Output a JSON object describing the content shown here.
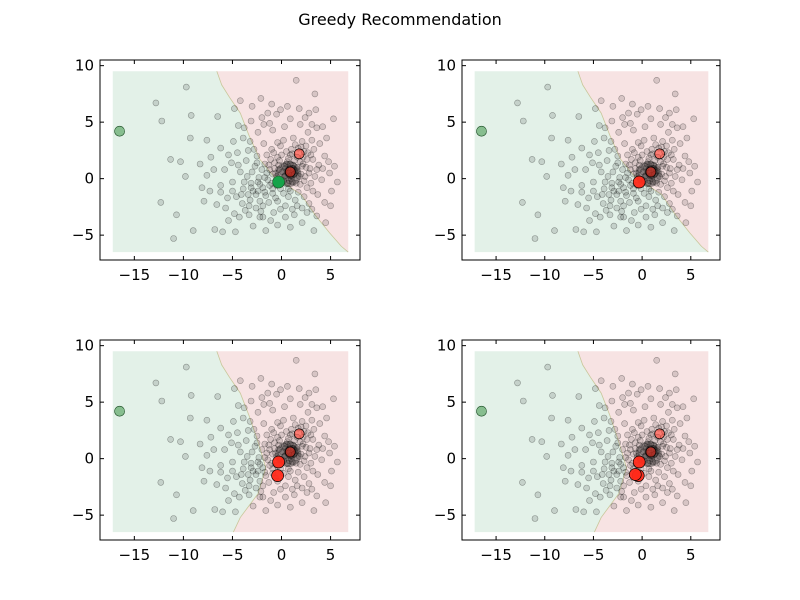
{
  "suptitle": "Greedy Recommendation",
  "colors": {
    "green_region": "#e3f1e8",
    "red_region": "#f7e3e3",
    "boundary": "#c9c79a",
    "cloud_point": "#000000",
    "green_marker": "#16a34a",
    "green_outlier": "#5fa86a",
    "red_marker": "#ff2a1a"
  },
  "chart_data": [
    {
      "type": "scatter",
      "title": "",
      "xlabel": "",
      "ylabel": "",
      "xlim": [
        -18.5,
        8
      ],
      "ylim": [
        -7.2,
        10.5
      ],
      "xticks": [
        -15,
        -10,
        -5,
        0,
        5
      ],
      "xtick_labels": [
        "−15",
        "−10",
        "−5",
        "0",
        "5"
      ],
      "yticks": [
        -5,
        0,
        5,
        10
      ],
      "ytick_labels": [
        "−5",
        "0",
        "5",
        "10"
      ],
      "region_extent": {
        "x": [
          -17.2,
          6.8
        ],
        "y": [
          -6.5,
          9.5
        ]
      },
      "boundary": [
        [
          -6.6,
          9.5
        ],
        [
          -6.1,
          8.3
        ],
        [
          -5.3,
          7.2
        ],
        [
          -4.2,
          5.8
        ],
        [
          -3.3,
          3.8
        ],
        [
          -2.2,
          1.7
        ],
        [
          -0.9,
          0.3
        ],
        [
          0.4,
          -0.5
        ],
        [
          2.0,
          -1.4
        ],
        [
          3.5,
          -3.3
        ],
        [
          4.9,
          -4.8
        ],
        [
          6.1,
          -6.0
        ],
        [
          6.8,
          -6.5
        ]
      ],
      "green_points": [
        [
          -16.5,
          4.2
        ],
        [
          -0.3,
          -0.3
        ]
      ],
      "red_points": [
        [
          0.9,
          0.6
        ],
        [
          1.8,
          2.2
        ]
      ]
    },
    {
      "type": "scatter",
      "title": "",
      "xlabel": "",
      "ylabel": "",
      "xlim": [
        -18.5,
        8
      ],
      "ylim": [
        -7.2,
        10.5
      ],
      "xticks": [
        -15,
        -10,
        -5,
        0,
        5
      ],
      "xtick_labels": [
        "−15",
        "−10",
        "−5",
        "0",
        "5"
      ],
      "yticks": [
        -5,
        0,
        5,
        10
      ],
      "ytick_labels": [
        "−5",
        "0",
        "5",
        "10"
      ],
      "region_extent": {
        "x": [
          -17.2,
          6.8
        ],
        "y": [
          -6.5,
          9.5
        ]
      },
      "boundary": [
        [
          -6.6,
          9.5
        ],
        [
          -6.1,
          8.3
        ],
        [
          -5.3,
          7.2
        ],
        [
          -4.2,
          5.8
        ],
        [
          -3.3,
          3.8
        ],
        [
          -2.2,
          1.7
        ],
        [
          -0.9,
          0.3
        ],
        [
          0.4,
          -0.5
        ],
        [
          2.0,
          -1.4
        ],
        [
          3.5,
          -3.3
        ],
        [
          4.9,
          -4.8
        ],
        [
          6.1,
          -6.0
        ],
        [
          6.8,
          -6.5
        ]
      ],
      "green_points": [
        [
          -16.5,
          4.2
        ]
      ],
      "red_points": [
        [
          0.9,
          0.6
        ],
        [
          1.8,
          2.2
        ],
        [
          -0.3,
          -0.3
        ]
      ]
    },
    {
      "type": "scatter",
      "title": "",
      "xlabel": "",
      "ylabel": "",
      "xlim": [
        -18.5,
        8
      ],
      "ylim": [
        -7.2,
        10.5
      ],
      "xticks": [
        -15,
        -10,
        -5,
        0,
        5
      ],
      "xtick_labels": [
        "−15",
        "−10",
        "−5",
        "0",
        "5"
      ],
      "yticks": [
        -5,
        0,
        5,
        10
      ],
      "ytick_labels": [
        "−5",
        "0",
        "5",
        "10"
      ],
      "region_extent": {
        "x": [
          -17.2,
          6.8
        ],
        "y": [
          -6.5,
          9.5
        ]
      },
      "boundary": [
        [
          -6.6,
          9.5
        ],
        [
          -6.1,
          8.3
        ],
        [
          -5.3,
          7.2
        ],
        [
          -4.2,
          5.8
        ],
        [
          -3.3,
          3.8
        ],
        [
          -2.4,
          1.5
        ],
        [
          -1.6,
          -0.8
        ],
        [
          -2.4,
          -3.1
        ],
        [
          -4.2,
          -5.2
        ],
        [
          -4.9,
          -6.5
        ]
      ],
      "green_points": [
        [
          -16.5,
          4.2
        ]
      ],
      "red_points": [
        [
          0.9,
          0.6
        ],
        [
          1.8,
          2.2
        ],
        [
          -0.3,
          -0.3
        ],
        [
          -0.4,
          -1.5
        ]
      ]
    },
    {
      "type": "scatter",
      "title": "",
      "xlabel": "",
      "ylabel": "",
      "xlim": [
        -18.5,
        8
      ],
      "ylim": [
        -7.2,
        10.5
      ],
      "xticks": [
        -15,
        -10,
        -5,
        0,
        5
      ],
      "xtick_labels": [
        "−15",
        "−10",
        "−5",
        "0",
        "5"
      ],
      "yticks": [
        -5,
        0,
        5,
        10
      ],
      "ytick_labels": [
        "−5",
        "0",
        "5",
        "10"
      ],
      "region_extent": {
        "x": [
          -17.2,
          6.8
        ],
        "y": [
          -6.5,
          9.5
        ]
      },
      "boundary": [
        [
          -6.6,
          9.5
        ],
        [
          -6.1,
          8.3
        ],
        [
          -5.3,
          7.2
        ],
        [
          -4.2,
          5.8
        ],
        [
          -3.3,
          3.8
        ],
        [
          -2.4,
          1.5
        ],
        [
          -1.6,
          -0.8
        ],
        [
          -2.4,
          -3.1
        ],
        [
          -4.2,
          -5.2
        ],
        [
          -4.9,
          -6.5
        ]
      ],
      "green_points": [
        [
          -16.5,
          4.2
        ]
      ],
      "red_points": [
        [
          0.9,
          0.6
        ],
        [
          1.8,
          2.2
        ],
        [
          -0.3,
          -0.3
        ],
        [
          -0.4,
          -1.5
        ],
        [
          -0.7,
          -1.4
        ]
      ]
    }
  ],
  "cloud_points": [
    [
      -12.8,
      6.7
    ],
    [
      -12.2,
      5.1
    ],
    [
      -9.7,
      8.1
    ],
    [
      -9.2,
      5.6
    ],
    [
      -9.3,
      3.6
    ],
    [
      -11.3,
      1.7
    ],
    [
      -10.3,
      1.5
    ],
    [
      -9.8,
      0.2
    ],
    [
      -12.3,
      -2.1
    ],
    [
      -11,
      -5.3
    ],
    [
      -7.9,
      -2
    ],
    [
      -7.6,
      0.3
    ],
    [
      -6.2,
      2.7
    ],
    [
      -6.5,
      5.5
    ],
    [
      -6,
      -4.7
    ],
    [
      -6.8,
      -4.5
    ],
    [
      -4.7,
      -4.7
    ],
    [
      -9,
      -4.6
    ],
    [
      -10.7,
      -3.2
    ],
    [
      -6.2,
      -1.2
    ],
    [
      -5.5,
      -1.7
    ],
    [
      -7.2,
      1.9
    ],
    [
      -4.8,
      6.2
    ],
    [
      -3.8,
      4.5
    ],
    [
      -5.1,
      1.4
    ],
    [
      -4.3,
      -3.4
    ],
    [
      -2.2,
      -3.4
    ],
    [
      -1.4,
      5.8
    ],
    [
      -1.8,
      4.8
    ],
    [
      -0.5,
      5.7
    ],
    [
      -0.1,
      6.1
    ],
    [
      1.5,
      8.7
    ],
    [
      3.4,
      7.5
    ],
    [
      3.5,
      6.1
    ],
    [
      3.6,
      4.5
    ],
    [
      3.9,
      3.1
    ],
    [
      5.3,
      5.3
    ],
    [
      4.4,
      2
    ],
    [
      4.9,
      0.5
    ],
    [
      4.1,
      -0.1
    ],
    [
      3.7,
      -1.4
    ],
    [
      4.4,
      -2.1
    ],
    [
      3.6,
      -3.3
    ],
    [
      5,
      -2.4
    ],
    [
      5.1,
      -1.1
    ],
    [
      2.6,
      -3
    ],
    [
      1.3,
      -3.2
    ],
    [
      0.4,
      -3.4
    ],
    [
      -1.5,
      2.1
    ],
    [
      -2.5,
      1.4
    ],
    [
      -3.2,
      3.3
    ],
    [
      -2.9,
      -1.1
    ],
    [
      -1.9,
      -2.4
    ],
    [
      -0.9,
      -1.3
    ],
    [
      -0.4,
      -2
    ],
    [
      0.4,
      0.9
    ],
    [
      1.2,
      1.2
    ],
    [
      1.3,
      0.4
    ],
    [
      2.2,
      1.3
    ],
    [
      2.4,
      0.2
    ],
    [
      1.1,
      -0.3
    ],
    [
      0.7,
      -0.9
    ],
    [
      1.9,
      -0.5
    ],
    [
      2.7,
      2.3
    ],
    [
      2.1,
      3.3
    ],
    [
      1.2,
      3.6
    ],
    [
      0.5,
      2.4
    ],
    [
      -0.4,
      3.2
    ],
    [
      -1.1,
      1.7
    ],
    [
      -0.7,
      0.9
    ],
    [
      -1.5,
      0.5
    ],
    [
      -2.4,
      -0.3
    ],
    [
      -3.5,
      0.2
    ],
    [
      -3.9,
      -0.9
    ],
    [
      -3.2,
      -1.9
    ],
    [
      -1.2,
      -0.6
    ],
    [
      0.2,
      -0.2
    ],
    [
      2.9,
      0.9
    ],
    [
      3.2,
      1.7
    ],
    [
      0.9,
      2.1
    ],
    [
      -0.2,
      1.6
    ],
    [
      1.7,
      2.7
    ],
    [
      -1.8,
      3.1
    ],
    [
      -2.8,
      2.6
    ],
    [
      -3.6,
      1.6
    ],
    [
      -4.2,
      0.6
    ],
    [
      -3.1,
      -0.4
    ],
    [
      -2,
      0.8
    ],
    [
      0.1,
      0.6
    ],
    [
      0.6,
      1.5
    ],
    [
      1.6,
      1.9
    ],
    [
      2.5,
      2.9
    ],
    [
      3,
      -0.4
    ],
    [
      2.3,
      -1.6
    ],
    [
      1.4,
      -1.9
    ],
    [
      -0.1,
      -2.7
    ],
    [
      -1.1,
      -3.7
    ],
    [
      -2.6,
      -2.6
    ],
    [
      -3.7,
      -2.8
    ],
    [
      -4.6,
      -1.6
    ],
    [
      -5,
      -0.3
    ],
    [
      -4.5,
      2.3
    ],
    [
      -3.9,
      3.6
    ],
    [
      -2.4,
      4.1
    ],
    [
      -0.9,
      4.3
    ],
    [
      0.3,
      4.6
    ],
    [
      1.9,
      4.8
    ],
    [
      2.7,
      4.1
    ],
    [
      3.1,
      3.4
    ],
    [
      0.2,
      3.4
    ],
    [
      -1,
      2.6
    ],
    [
      1,
      0
    ],
    [
      1.6,
      1
    ],
    [
      0.7,
      1.8
    ],
    [
      2,
      0.4
    ],
    [
      -0.5,
      -0.6
    ],
    [
      -1.6,
      -1.5
    ],
    [
      -2.2,
      -2
    ],
    [
      -3.4,
      -1.4
    ],
    [
      -4,
      -2.2
    ],
    [
      -4.8,
      -3.1
    ],
    [
      -5.4,
      -3.7
    ],
    [
      -2.9,
      -4.2
    ],
    [
      -1.6,
      -4.6
    ],
    [
      -0.4,
      -4.1
    ],
    [
      0.9,
      -4.3
    ],
    [
      -6.2,
      -0.6
    ],
    [
      -5.8,
      0.8
    ],
    [
      -5.4,
      2.1
    ],
    [
      -4.9,
      3.3
    ],
    [
      -4.4,
      4.7
    ],
    [
      -3.1,
      5.1
    ],
    [
      -2,
      5.4
    ],
    [
      -1,
      6.6
    ],
    [
      0.6,
      6.4
    ],
    [
      1.8,
      6.2
    ],
    [
      2.8,
      5.8
    ],
    [
      4.2,
      4.6
    ],
    [
      4.6,
      3.6
    ],
    [
      3.3,
      2.6
    ],
    [
      0.7,
      -1.6
    ],
    [
      1.6,
      -2.4
    ],
    [
      2.8,
      -2.2
    ],
    [
      3.2,
      -1.1
    ],
    [
      -2.3,
      0.1
    ],
    [
      -2.7,
      1.1
    ],
    [
      -1.3,
      1.2
    ],
    [
      -0.8,
      2.3
    ],
    [
      -0.1,
      2.9
    ],
    [
      1.4,
      3
    ],
    [
      2.3,
      2.4
    ],
    [
      2.6,
      1.7
    ],
    [
      1.5,
      0.7
    ],
    [
      0.9,
      1.3
    ],
    [
      0.3,
      1.1
    ],
    [
      -0.3,
      0.8
    ],
    [
      -0.9,
      0.4
    ],
    [
      -1.4,
      -0.1
    ],
    [
      -1.9,
      -0.8
    ],
    [
      -2.6,
      -1.4
    ],
    [
      -1.3,
      -2.1
    ],
    [
      -0.6,
      -1.7
    ],
    [
      0.2,
      -1.3
    ],
    [
      0.9,
      -1.1
    ],
    [
      1.7,
      -1.2
    ],
    [
      2.6,
      -0.8
    ],
    [
      3.4,
      0.2
    ],
    [
      3.8,
      1.2
    ],
    [
      3,
      2.1
    ],
    [
      2,
      2.8
    ],
    [
      1,
      2.6
    ],
    [
      0,
      2.1
    ],
    [
      -0.7,
      1.4
    ],
    [
      -1.7,
      1.3
    ],
    [
      -2.5,
      2
    ],
    [
      -3.4,
      2.5
    ],
    [
      -3.8,
      -0.3
    ],
    [
      -3,
      0.6
    ],
    [
      -2.2,
      -0.5
    ],
    [
      -1.7,
      0.1
    ],
    [
      -1.2,
      0.8
    ],
    [
      -0.5,
      0.2
    ],
    [
      0.4,
      0.3
    ],
    [
      1.2,
      0.9
    ],
    [
      2.1,
      1.1
    ],
    [
      2.8,
      0.5
    ],
    [
      2.3,
      -0.2
    ],
    [
      1.5,
      -0.4
    ],
    [
      0.6,
      -0.4
    ],
    [
      -0.1,
      -0.9
    ],
    [
      -0.9,
      -0.9
    ],
    [
      -1.7,
      -1.2
    ],
    [
      -2.4,
      -1.1
    ],
    [
      -3.1,
      -0.8
    ],
    [
      -0.3,
      1.2
    ],
    [
      0.7,
      0.5
    ],
    [
      1.3,
      1.6
    ],
    [
      2.2,
      1.9
    ],
    [
      3.6,
      0.8
    ],
    [
      4.2,
      0.9
    ],
    [
      -4.4,
      1.2
    ],
    [
      -5,
      -1.1
    ],
    [
      -4.1,
      -1.4
    ],
    [
      -3.3,
      -2.4
    ],
    [
      -2.1,
      -2.9
    ],
    [
      -0.8,
      -3
    ],
    [
      0.4,
      -2.4
    ],
    [
      1.1,
      -2.7
    ],
    [
      2.1,
      -2.6
    ],
    [
      3.1,
      -2.7
    ],
    [
      -6.9,
      0.8
    ],
    [
      -7.3,
      -1.1
    ],
    [
      -8.1,
      -0.8
    ],
    [
      -5.7,
      -2.6
    ],
    [
      -6.6,
      -2.3
    ],
    [
      -8.3,
      1.3
    ],
    [
      -7.6,
      3.4
    ],
    [
      -4.2,
      6.9
    ],
    [
      -3,
      6.4
    ],
    [
      -2.1,
      7.1
    ],
    [
      -1.2,
      4.9
    ],
    [
      0.9,
      5.3
    ],
    [
      2.4,
      5.4
    ],
    [
      3.1,
      4.8
    ],
    [
      4.8,
      1.5
    ],
    [
      5.7,
      -0.3
    ],
    [
      5.4,
      1.1
    ],
    [
      4.5,
      -3.9
    ],
    [
      3.3,
      -4.6
    ],
    [
      2.1,
      -3.9
    ],
    [
      -1.9,
      -3.4
    ],
    [
      -3.3,
      -3.2
    ],
    [
      -1,
      -0.4
    ],
    [
      -0.2,
      -0.1
    ],
    [
      0.3,
      0.2
    ],
    [
      1,
      0.3
    ],
    [
      1.8,
      0.2
    ],
    [
      0.8,
      -0.2
    ],
    [
      -0.6,
      0.5
    ],
    [
      0.5,
      1.3
    ],
    [
      -0.4,
      1.9
    ],
    [
      1.1,
      2.2
    ],
    [
      1.9,
      1.5
    ],
    [
      2.5,
      1
    ]
  ]
}
